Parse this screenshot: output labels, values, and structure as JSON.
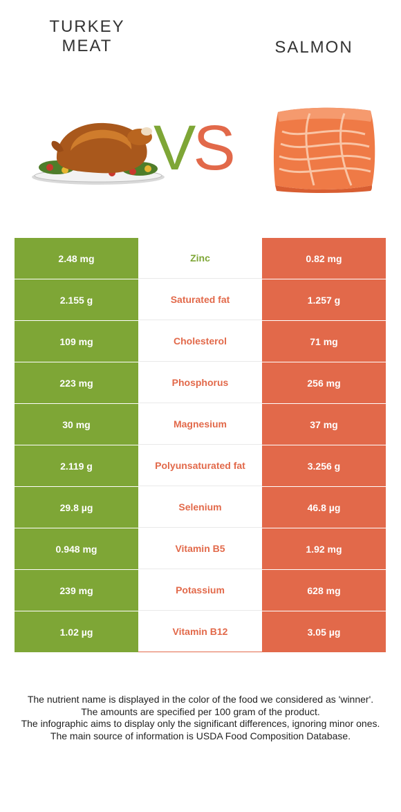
{
  "header": {
    "left_title": "TURKEY\nMEAT",
    "right_title": "SALMON",
    "vs_v": "V",
    "vs_s": "S"
  },
  "colors": {
    "turkey": "#7ea636",
    "salmon": "#e2694a",
    "text": "#333333"
  },
  "rows": [
    {
      "left": "2.48 mg",
      "nutrient": "Zinc",
      "right": "0.82 mg",
      "winner": "turkey"
    },
    {
      "left": "2.155 g",
      "nutrient": "Saturated fat",
      "right": "1.257 g",
      "winner": "salmon"
    },
    {
      "left": "109 mg",
      "nutrient": "Cholesterol",
      "right": "71 mg",
      "winner": "salmon"
    },
    {
      "left": "223 mg",
      "nutrient": "Phosphorus",
      "right": "256 mg",
      "winner": "salmon"
    },
    {
      "left": "30 mg",
      "nutrient": "Magnesium",
      "right": "37 mg",
      "winner": "salmon"
    },
    {
      "left": "2.119 g",
      "nutrient": "Polyunsaturated fat",
      "right": "3.256 g",
      "winner": "salmon"
    },
    {
      "left": "29.8 µg",
      "nutrient": "Selenium",
      "right": "46.8 µg",
      "winner": "salmon"
    },
    {
      "left": "0.948 mg",
      "nutrient": "Vitamin B5",
      "right": "1.92 mg",
      "winner": "salmon"
    },
    {
      "left": "239 mg",
      "nutrient": "Potassium",
      "right": "628 mg",
      "winner": "salmon"
    },
    {
      "left": "1.02 µg",
      "nutrient": "Vitamin B12",
      "right": "3.05 µg",
      "winner": "salmon"
    }
  ],
  "notes": [
    "The nutrient name is displayed in the color of the food we considered as 'winner'.",
    "The amounts are specified per 100 gram of the product.",
    "The infographic aims to display only the significant differences, ignoring minor ones.",
    "The main source of information is USDA Food Composition Database."
  ]
}
